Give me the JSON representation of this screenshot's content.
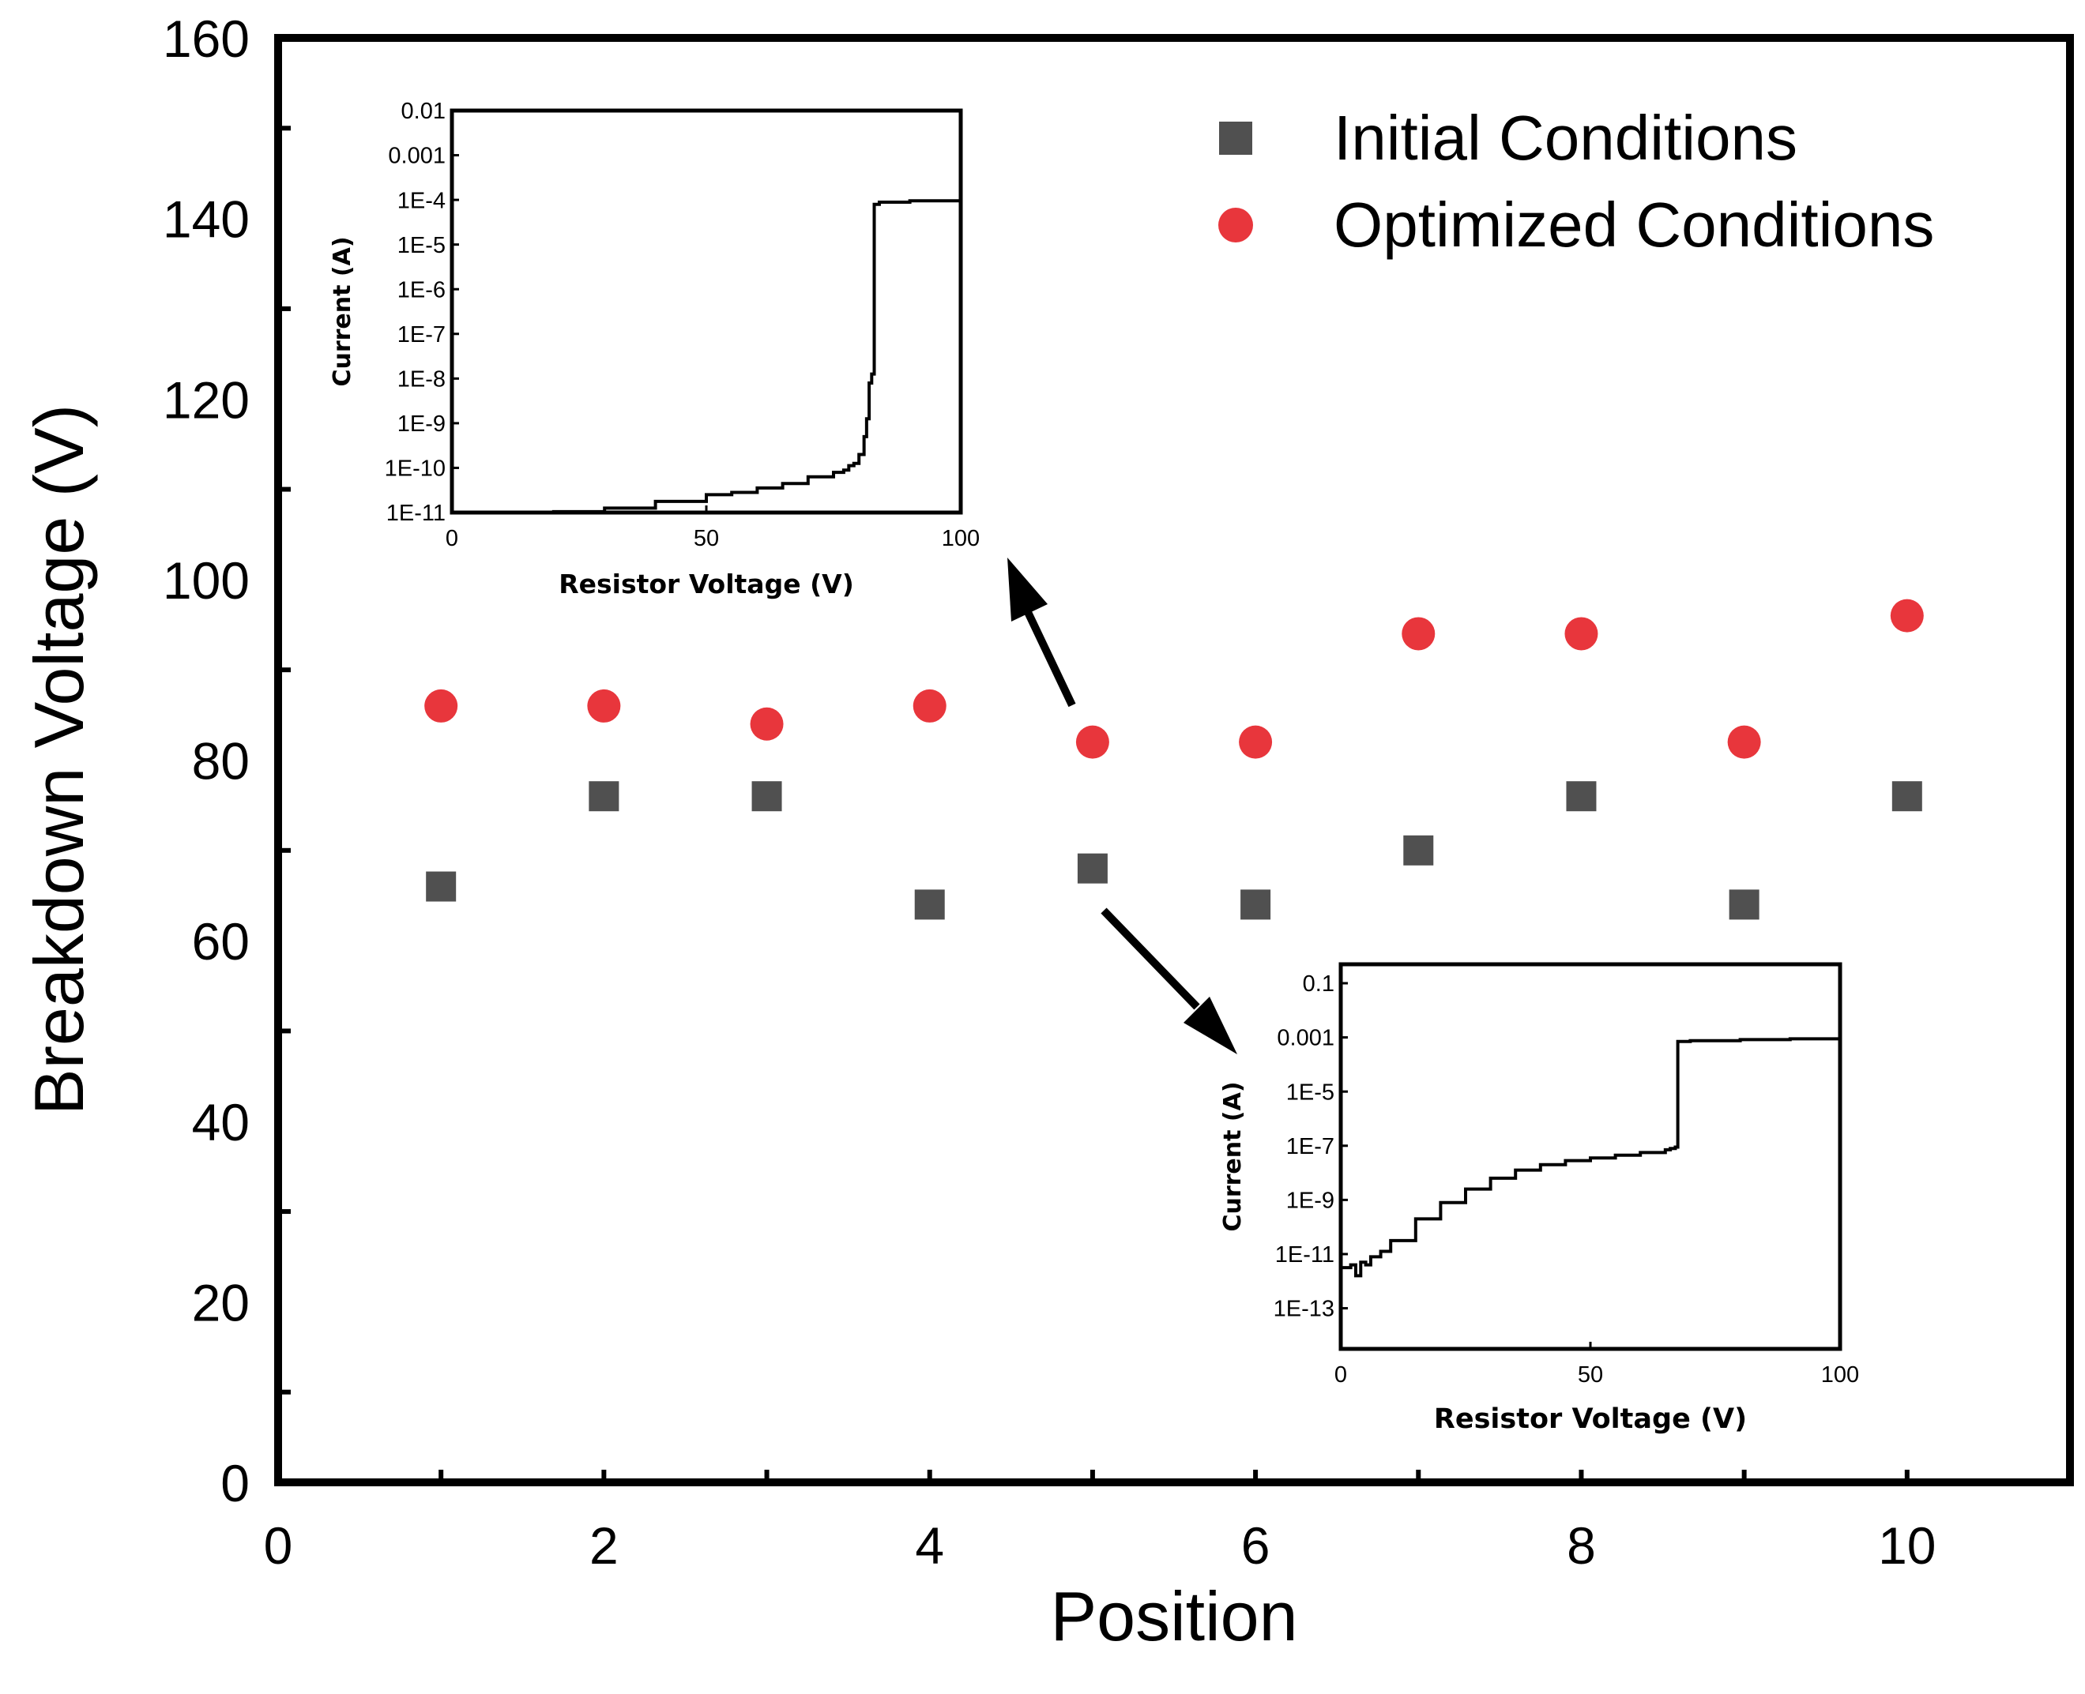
{
  "chart_data": [
    {
      "type": "scatter",
      "xlabel": "Position",
      "ylabel": "Breakdown Voltage (V)",
      "xlim": [
        0,
        11
      ],
      "ylim": [
        0,
        160
      ],
      "x_ticks": [
        0,
        2,
        4,
        6,
        8,
        10
      ],
      "y_ticks": [
        0,
        20,
        40,
        60,
        80,
        100,
        120,
        140,
        160
      ],
      "legend_position": "top-right",
      "series": [
        {
          "name": "Initial Conditions",
          "marker": "square",
          "color": "#505050",
          "x": [
            1,
            2,
            3,
            4,
            5,
            6,
            7,
            8,
            9,
            10
          ],
          "y": [
            66,
            76,
            76,
            64,
            68,
            64,
            70,
            76,
            64,
            76
          ]
        },
        {
          "name": "Optimized Conditions",
          "marker": "circle",
          "color": "#e8363c",
          "x": [
            1,
            2,
            3,
            4,
            5,
            6,
            7,
            8,
            9,
            10
          ],
          "y": [
            86,
            86,
            84,
            86,
            82,
            82,
            94,
            94,
            82,
            96
          ]
        }
      ]
    },
    {
      "type": "line",
      "inset": "top-left",
      "xlabel": "Resistor Voltage (V)",
      "ylabel": "Current (A)",
      "xlim": [
        0,
        100
      ],
      "y_scale": "log",
      "ylim_exp": [
        -11,
        -2
      ],
      "x_ticks": [
        0,
        50,
        100
      ],
      "y_tick_labels": [
        "1E-11",
        "1E-10",
        "1E-9",
        "1E-8",
        "1E-7",
        "1E-6",
        "1E-5",
        "1E-4",
        "0.001",
        "0.01"
      ],
      "y_tick_exps": [
        -11,
        -10,
        -9,
        -8,
        -7,
        -6,
        -5,
        -4,
        -3,
        -2
      ],
      "arrow_points_to_position": 5,
      "series": [
        {
          "x": [
            0,
            10,
            20,
            30,
            40,
            50,
            55,
            60,
            65,
            70,
            75,
            77,
            78,
            79,
            80,
            81,
            81.5,
            82,
            82.5,
            83,
            84,
            90,
            100
          ],
          "log10_y": [
            -11,
            -11,
            -10.98,
            -10.9,
            -10.75,
            -10.6,
            -10.55,
            -10.45,
            -10.35,
            -10.2,
            -10.1,
            -10.05,
            -9.95,
            -9.9,
            -9.7,
            -9.3,
            -8.9,
            -8.1,
            -7.9,
            -4.1,
            -4.05,
            -4.02,
            -3.98
          ]
        }
      ]
    },
    {
      "type": "line",
      "inset": "bottom-right",
      "xlabel": "Resistor Voltage (V)",
      "ylabel": "Current (A)",
      "xlim": [
        0,
        100
      ],
      "y_scale": "log",
      "ylim_exp": [
        -14.5,
        -0.3
      ],
      "x_ticks": [
        0,
        50,
        100
      ],
      "y_tick_labels": [
        "1E-13",
        "1E-11",
        "1E-9",
        "1E-7",
        "1E-5",
        "0.001",
        "0.1"
      ],
      "y_tick_exps": [
        -13,
        -11,
        -9,
        -7,
        -5,
        -3,
        -1
      ],
      "arrow_points_to_position": 5,
      "series": [
        {
          "x": [
            0,
            2,
            3,
            4,
            5,
            6,
            8,
            10,
            15,
            20,
            25,
            30,
            35,
            40,
            45,
            50,
            55,
            60,
            65,
            66,
            67,
            67.5,
            70,
            80,
            90,
            100
          ],
          "log10_y": [
            -11.5,
            -11.4,
            -11.8,
            -11.3,
            -11.4,
            -11.1,
            -10.9,
            -10.5,
            -9.7,
            -9.1,
            -8.6,
            -8.2,
            -7.9,
            -7.7,
            -7.55,
            -7.45,
            -7.35,
            -7.25,
            -7.15,
            -7.1,
            -7.05,
            -3.15,
            -3.12,
            -3.08,
            -3.05,
            -3.0
          ]
        }
      ]
    }
  ]
}
